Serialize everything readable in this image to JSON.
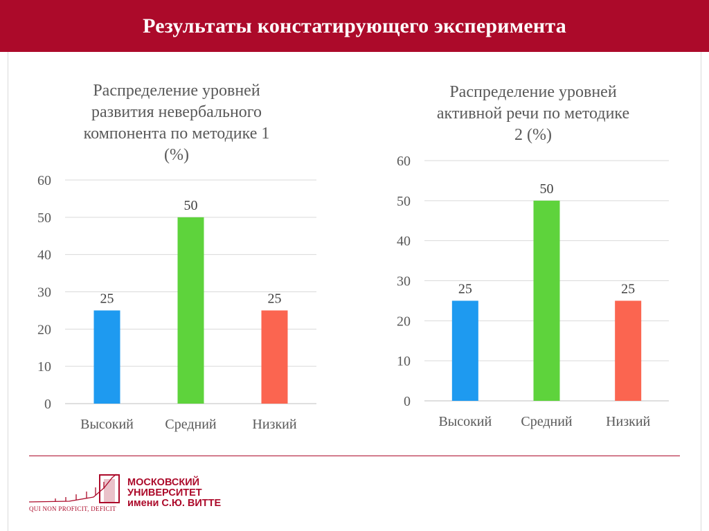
{
  "header": {
    "title": "Результаты констатирующего эксперимента"
  },
  "chart_data": [
    {
      "type": "bar",
      "title": "Распределение уровней развития невербального компонента по методике 1 (%)",
      "title_lines": [
        "Распределение уровней",
        "развития невербального",
        "компонента по методике 1",
        "(%)"
      ],
      "categories": [
        "Высокий",
        "Средний",
        "Низкий"
      ],
      "values": [
        25,
        50,
        25
      ],
      "colors": [
        "#1e9af0",
        "#5ed33c",
        "#fb6550"
      ],
      "ylim": [
        0,
        60
      ],
      "yticks": [
        0,
        10,
        20,
        30,
        40,
        50,
        60
      ],
      "xlabel": "",
      "ylabel": "",
      "grid": true
    },
    {
      "type": "bar",
      "title": "Распределение уровней активной речи по методике 2 (%)",
      "title_lines": [
        "Распределение уровней",
        "активной речи по методике",
        "2 (%)"
      ],
      "categories": [
        "Высокий",
        "Средний",
        "Низкий"
      ],
      "values": [
        25,
        50,
        25
      ],
      "colors": [
        "#1e9af0",
        "#5ed33c",
        "#fb6550"
      ],
      "ylim": [
        0,
        60
      ],
      "yticks": [
        0,
        10,
        20,
        30,
        40,
        50,
        60
      ],
      "xlabel": "",
      "ylabel": "",
      "grid": true
    }
  ],
  "footer": {
    "logo_lines": [
      "МОСКОВСКИЙ",
      "УНИВЕРСИТЕТ",
      "имени С.Ю. ВИТТЕ"
    ],
    "motto": "QUI NON PROFICIT, DEFICIT",
    "brand_color": "#ac0a2a"
  }
}
